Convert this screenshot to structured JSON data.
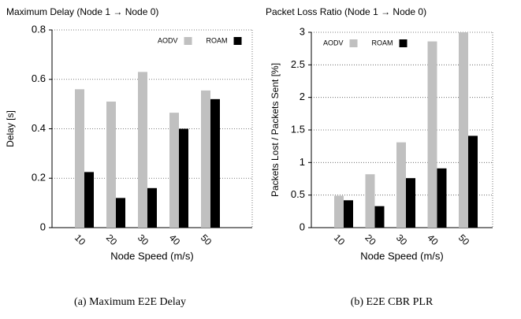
{
  "chart_data": [
    {
      "type": "bar",
      "title": "Maximum Delay (Node 1 → Node 0)",
      "x_label": "Node Speed (m/s)",
      "y_label": "Delay [s]",
      "caption": "(a) Maximum E2E Delay",
      "categories": [
        "10",
        "20",
        "30",
        "40",
        "50"
      ],
      "series": [
        {
          "name": "AODV",
          "color": "#c0c0c0",
          "values": [
            0.56,
            0.51,
            0.63,
            0.465,
            0.555
          ]
        },
        {
          "name": "ROAM",
          "color": "#000000",
          "values": [
            0.225,
            0.12,
            0.16,
            0.4,
            0.52
          ]
        }
      ],
      "ylim": [
        0,
        0.8
      ],
      "yticks": [
        0,
        0.2,
        0.4,
        0.6,
        0.8
      ],
      "grid": true,
      "legend": "upper right"
    },
    {
      "type": "bar",
      "title": "Packet Loss Ratio (Node 1 → Node 0)",
      "x_label": "Node Speed (m/s)",
      "y_label": "Packets Lost / Packets Sent [%]",
      "caption": "(b) E2E CBR PLR",
      "categories": [
        "10",
        "20",
        "30",
        "40",
        "50"
      ],
      "series": [
        {
          "name": "AODV",
          "color": "#c0c0c0",
          "values": [
            0.49,
            0.82,
            1.31,
            2.86,
            3.0
          ]
        },
        {
          "name": "ROAM",
          "color": "#000000",
          "values": [
            0.42,
            0.33,
            0.76,
            0.91,
            1.41
          ]
        }
      ],
      "ylim": [
        0,
        3
      ],
      "yticks": [
        0,
        0.5,
        1,
        1.5,
        2,
        2.5,
        3
      ],
      "grid": true,
      "legend": "upper left"
    }
  ]
}
